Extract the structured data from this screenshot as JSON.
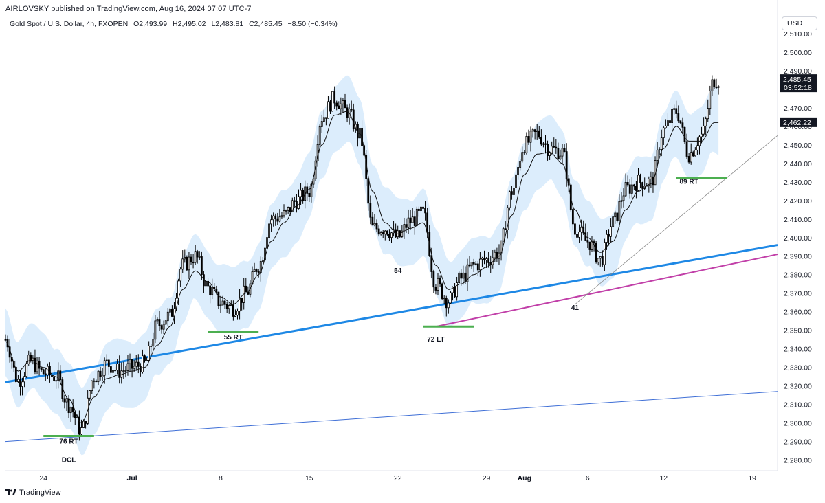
{
  "header": {
    "text": "AIRLOVSKY published on TradingView.com, Aug 16, 2024 07:07 UTC-7"
  },
  "legend": {
    "symbol": "Gold Spot / U.S. Dollar, 4h, FXOPEN",
    "open": "O2,493.99",
    "high": "H2,495.02",
    "low": "L2,483.81",
    "close": "C2,485.45",
    "change": "−8.50 (−0.34%)"
  },
  "currency": "USD",
  "footer": {
    "brand": "TradingView",
    "logo_icon": "tradingview-logo-icon"
  },
  "colors": {
    "up": "#ffffff",
    "down": "#000000",
    "band": "#d6eafb",
    "trend_blue": "#1e88e5",
    "trend_magenta": "#c13fa8",
    "support_green": "#4caf50",
    "thin_blue": "#3f6fd6",
    "thin_gray": "#8a8a8a"
  },
  "chart_data": {
    "type": "candlestick",
    "title": "Gold Spot / U.S. Dollar, 4h, FXOPEN",
    "y_ticks": [
      "2,510.00",
      "2,500.00",
      "2,490.00",
      "2,480.00",
      "2,470.00",
      "2,460.00",
      "2,450.00",
      "2,440.00",
      "2,430.00",
      "2,420.00",
      "2,410.00",
      "2,400.00",
      "2,390.00",
      "2,380.00",
      "2,370.00",
      "2,360.00",
      "2,350.00",
      "2,340.00",
      "2,330.00",
      "2,320.00",
      "2,310.00",
      "2,300.00",
      "2,290.00",
      "2,280.00"
    ],
    "y_tick_values": [
      2510,
      2500,
      2490,
      2480,
      2470,
      2460,
      2450,
      2440,
      2430,
      2420,
      2410,
      2400,
      2390,
      2380,
      2370,
      2360,
      2350,
      2340,
      2330,
      2320,
      2310,
      2300,
      2290,
      2280
    ],
    "ylim": [
      2274.3,
      2520.7
    ],
    "x_ticks": [
      "24",
      "Jul",
      "8",
      "15",
      "22",
      "29",
      "Aug",
      "6",
      "12",
      "19"
    ],
    "x_tick_values": [
      "2024-06-24",
      "2024-07-01",
      "2024-07-08",
      "2024-07-15",
      "2024-07-22",
      "2024-07-29",
      "2024-08-01",
      "2024-08-06",
      "2024-08-12",
      "2024-08-19"
    ],
    "x_tick_bold": [
      false,
      true,
      false,
      false,
      false,
      false,
      true,
      false,
      false,
      false
    ],
    "xlim": [
      "2024-06-21",
      "2024-08-21"
    ],
    "price_labels": [
      {
        "value": 2485.45,
        "text": "2,485.45",
        "sub": "03:52:18"
      },
      {
        "value": 2462.22,
        "text": "2,462.22"
      }
    ],
    "annotations": [
      {
        "text": "76 RT",
        "date": "2024-06-26",
        "price": 2289
      },
      {
        "text": "DCL",
        "date": "2024-06-26",
        "price": 2279
      },
      {
        "text": "55 RT",
        "date": "2024-07-09",
        "price": 2345
      },
      {
        "text": "54",
        "date": "2024-07-22",
        "price": 2381
      },
      {
        "text": "72 LT",
        "date": "2024-07-25",
        "price": 2344
      },
      {
        "text": "41",
        "date": "2024-08-05",
        "price": 2361
      },
      {
        "text": "89 RT",
        "date": "2024-08-14",
        "price": 2429
      }
    ],
    "support_lines": [
      {
        "date_start": "2024-06-24",
        "date_end": "2024-06-28",
        "price": 2293
      },
      {
        "date_start": "2024-07-07",
        "date_end": "2024-07-11",
        "price": 2349
      },
      {
        "date_start": "2024-07-24",
        "date_end": "2024-07-28",
        "price": 2352
      },
      {
        "date_start": "2024-08-13",
        "date_end": "2024-08-17",
        "price": 2432
      }
    ],
    "trend_lines": [
      {
        "name": "blue-thick",
        "color": "#1e88e5",
        "width": 3,
        "start": [
          "2024-06-21",
          2322
        ],
        "end": [
          "2024-08-21",
          2396
        ]
      },
      {
        "name": "magenta",
        "color": "#c13fa8",
        "width": 2,
        "start": [
          "2024-07-25",
          2352
        ],
        "end": [
          "2024-08-21",
          2391
        ]
      },
      {
        "name": "thin-gray",
        "color": "#8a8a8a",
        "width": 0.8,
        "start": [
          "2024-08-05",
          2364
        ],
        "end": [
          "2024-08-21",
          2455
        ]
      },
      {
        "name": "thin-blue",
        "color": "#3f6fd6",
        "width": 1,
        "start": [
          "2024-06-21",
          2290
        ],
        "end": [
          "2024-08-21",
          2317
        ]
      }
    ],
    "ohlc_range": {
      "date_start": "2024-06-21",
      "date_end": "2024-08-16",
      "low": 2293,
      "high": 2500
    },
    "ohlc_anchors": [
      [
        "2024-06-21",
        2345
      ],
      [
        "2024-06-22",
        2323
      ],
      [
        "2024-06-23",
        2333
      ],
      [
        "2024-06-24",
        2327
      ],
      [
        "2024-06-25",
        2325
      ],
      [
        "2024-06-26",
        2310
      ],
      [
        "2024-06-27",
        2296
      ],
      [
        "2024-06-28",
        2325
      ],
      [
        "2024-06-29",
        2332
      ],
      [
        "2024-06-30",
        2328
      ],
      [
        "2024-07-01",
        2330
      ],
      [
        "2024-07-02",
        2332
      ],
      [
        "2024-07-03",
        2353
      ],
      [
        "2024-07-04",
        2358
      ],
      [
        "2024-07-05",
        2385
      ],
      [
        "2024-07-06",
        2390
      ],
      [
        "2024-07-07",
        2373
      ],
      [
        "2024-07-08",
        2365
      ],
      [
        "2024-07-09",
        2362
      ],
      [
        "2024-07-10",
        2370
      ],
      [
        "2024-07-11",
        2385
      ],
      [
        "2024-07-12",
        2410
      ],
      [
        "2024-07-13",
        2412
      ],
      [
        "2024-07-14",
        2420
      ],
      [
        "2024-07-15",
        2425
      ],
      [
        "2024-07-16",
        2465
      ],
      [
        "2024-07-17",
        2475
      ],
      [
        "2024-07-18",
        2468
      ],
      [
        "2024-07-19",
        2455
      ],
      [
        "2024-07-20",
        2405
      ],
      [
        "2024-07-21",
        2405
      ],
      [
        "2024-07-22",
        2400
      ],
      [
        "2024-07-23",
        2409
      ],
      [
        "2024-07-24",
        2413
      ],
      [
        "2024-07-25",
        2375
      ],
      [
        "2024-07-26",
        2366
      ],
      [
        "2024-07-27",
        2378
      ],
      [
        "2024-07-28",
        2385
      ],
      [
        "2024-07-29",
        2388
      ],
      [
        "2024-07-30",
        2392
      ],
      [
        "2024-07-31",
        2425
      ],
      [
        "2024-08-01",
        2450
      ],
      [
        "2024-08-02",
        2456
      ],
      [
        "2024-08-03",
        2448
      ],
      [
        "2024-08-04",
        2446
      ],
      [
        "2024-08-05",
        2405
      ],
      [
        "2024-08-06",
        2398
      ],
      [
        "2024-08-07",
        2388
      ],
      [
        "2024-08-08",
        2408
      ],
      [
        "2024-08-09",
        2426
      ],
      [
        "2024-08-10",
        2430
      ],
      [
        "2024-08-11",
        2430
      ],
      [
        "2024-08-12",
        2458
      ],
      [
        "2024-08-13",
        2468
      ],
      [
        "2024-08-14",
        2445
      ],
      [
        "2024-08-15",
        2455
      ],
      [
        "2024-08-16",
        2485
      ]
    ],
    "ma_anchors": [
      [
        "2024-06-21",
        2344
      ],
      [
        "2024-06-22",
        2328
      ],
      [
        "2024-06-23",
        2334
      ],
      [
        "2024-06-24",
        2330
      ],
      [
        "2024-06-25",
        2325
      ],
      [
        "2024-06-26",
        2313
      ],
      [
        "2024-06-27",
        2300
      ],
      [
        "2024-06-28",
        2314
      ],
      [
        "2024-06-29",
        2324
      ],
      [
        "2024-06-30",
        2326
      ],
      [
        "2024-07-01",
        2328
      ],
      [
        "2024-07-02",
        2330
      ],
      [
        "2024-07-03",
        2342
      ],
      [
        "2024-07-04",
        2352
      ],
      [
        "2024-07-05",
        2372
      ],
      [
        "2024-07-06",
        2382
      ],
      [
        "2024-07-07",
        2376
      ],
      [
        "2024-07-08",
        2368
      ],
      [
        "2024-07-09",
        2364
      ],
      [
        "2024-07-10",
        2370
      ],
      [
        "2024-07-11",
        2380
      ],
      [
        "2024-07-12",
        2398
      ],
      [
        "2024-07-13",
        2408
      ],
      [
        "2024-07-14",
        2417
      ],
      [
        "2024-07-15",
        2426
      ],
      [
        "2024-07-16",
        2450
      ],
      [
        "2024-07-17",
        2466
      ],
      [
        "2024-07-18",
        2468
      ],
      [
        "2024-07-19",
        2456
      ],
      [
        "2024-07-20",
        2425
      ],
      [
        "2024-07-21",
        2408
      ],
      [
        "2024-07-22",
        2402
      ],
      [
        "2024-07-23",
        2405
      ],
      [
        "2024-07-24",
        2408
      ],
      [
        "2024-07-25",
        2385
      ],
      [
        "2024-07-26",
        2372
      ],
      [
        "2024-07-27",
        2375
      ],
      [
        "2024-07-28",
        2380
      ],
      [
        "2024-07-29",
        2384
      ],
      [
        "2024-07-30",
        2390
      ],
      [
        "2024-07-31",
        2412
      ],
      [
        "2024-08-01",
        2434
      ],
      [
        "2024-08-02",
        2445
      ],
      [
        "2024-08-03",
        2446
      ],
      [
        "2024-08-04",
        2440
      ],
      [
        "2024-08-05",
        2415
      ],
      [
        "2024-08-06",
        2400
      ],
      [
        "2024-08-07",
        2392
      ],
      [
        "2024-08-08",
        2398
      ],
      [
        "2024-08-09",
        2415
      ],
      [
        "2024-08-10",
        2425
      ],
      [
        "2024-08-11",
        2429
      ],
      [
        "2024-08-12",
        2448
      ],
      [
        "2024-08-13",
        2460
      ],
      [
        "2024-08-14",
        2452
      ],
      [
        "2024-08-15",
        2452
      ],
      [
        "2024-08-16",
        2462
      ]
    ]
  }
}
